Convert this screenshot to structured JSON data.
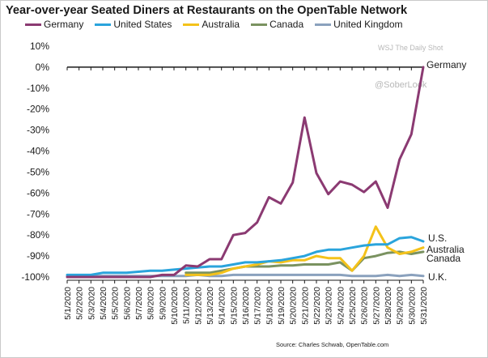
{
  "chart_data": {
    "type": "line",
    "title": "Year-over-year Seated Diners at Restaurants on the OpenTable Network",
    "xlabel": "",
    "ylabel": "",
    "ylim": [
      -100,
      10
    ],
    "y_ticks": [
      "10%",
      "0%",
      "-10%",
      "-20%",
      "-30%",
      "-40%",
      "-50%",
      "-60%",
      "-70%",
      "-80%",
      "-90%",
      "-100%"
    ],
    "y_tick_values": [
      10,
      0,
      -10,
      -20,
      -30,
      -40,
      -50,
      -60,
      -70,
      -80,
      -90,
      -100
    ],
    "grid": false,
    "legend_position": "top",
    "categories": [
      "5/1/2020",
      "5/2/2020",
      "5/3/2020",
      "5/4/2020",
      "5/5/2020",
      "5/6/2020",
      "5/7/2020",
      "5/8/2020",
      "5/9/2020",
      "5/10/2020",
      "5/11/2020",
      "5/12/2020",
      "5/13/2020",
      "5/14/2020",
      "5/15/2020",
      "5/16/2020",
      "5/17/2020",
      "5/18/2020",
      "5/19/2020",
      "5/20/2020",
      "5/21/2020",
      "5/22/2020",
      "5/23/2020",
      "5/24/2020",
      "5/25/2020",
      "5/26/2020",
      "5/27/2020",
      "5/28/2020",
      "5/29/2020",
      "5/30/2020",
      "5/31/2020"
    ],
    "series": [
      {
        "name": "Germany",
        "color": "#8b3a72",
        "end_label": "Germany",
        "values": [
          -100,
          -100,
          -100,
          -100,
          -100,
          -100,
          -100,
          -100,
          -99,
          -99,
          -94.5,
          -95,
          -91.5,
          -91.5,
          -80,
          -79,
          -74,
          -62,
          -65,
          -55,
          -24,
          -50.5,
          -60.5,
          -54.5,
          -56,
          -59.5,
          -54.5,
          -67,
          -44,
          -32,
          0
        ]
      },
      {
        "name": "United States",
        "color": "#2aa4dc",
        "end_label": "U.S.",
        "values": [
          -99,
          -99,
          -99,
          -98,
          -98,
          -98,
          -97.5,
          -97,
          -97,
          -96.5,
          -96,
          -95.5,
          -95,
          -95,
          -94,
          -93,
          -93,
          -92.5,
          -92,
          -91,
          -90,
          -88,
          -87,
          -87,
          -86,
          -85,
          -84.5,
          -84.5,
          -81.5,
          -81,
          -83
        ]
      },
      {
        "name": "Australia",
        "color": "#f4c21a",
        "end_label": "Australia",
        "values": [
          null,
          null,
          null,
          null,
          null,
          null,
          null,
          null,
          null,
          null,
          -99,
          -99,
          -99,
          -98,
          -96,
          -95,
          -94,
          -92.5,
          -93,
          -92,
          -92,
          -90,
          -91,
          -91,
          -97,
          -90,
          -76,
          -86,
          -89,
          -88,
          -86
        ]
      },
      {
        "name": "Canada",
        "color": "#7a9260",
        "end_label": "Canada",
        "values": [
          null,
          null,
          null,
          null,
          null,
          null,
          null,
          null,
          null,
          null,
          -98,
          -98,
          -98,
          -97,
          -96,
          -95,
          -95,
          -95,
          -94.5,
          -94.5,
          -94,
          -94,
          -94,
          -93,
          -97,
          -91,
          -90,
          -88.5,
          -88,
          -89,
          -88
        ]
      },
      {
        "name": "United Kingdom",
        "color": "#8aa1bd",
        "end_label": "U.K.",
        "values": [
          -99.5,
          -99.5,
          -99.5,
          -99.5,
          -99.5,
          -99.5,
          -99.5,
          -99.5,
          -99.5,
          -99.5,
          -99.5,
          -99,
          -99.5,
          -99.5,
          -99,
          -99,
          -99,
          -99,
          -99,
          -99,
          -99,
          -99,
          -99,
          -99,
          -99.5,
          -99.5,
          -99.5,
          -99,
          -99.5,
          -99,
          -99.5
        ]
      }
    ]
  },
  "watermark": {
    "text": "WSJ  The Daily Shot",
    "handle": "@SoberLook"
  },
  "source": "Source: Charles Schwab, OpenTable.com"
}
